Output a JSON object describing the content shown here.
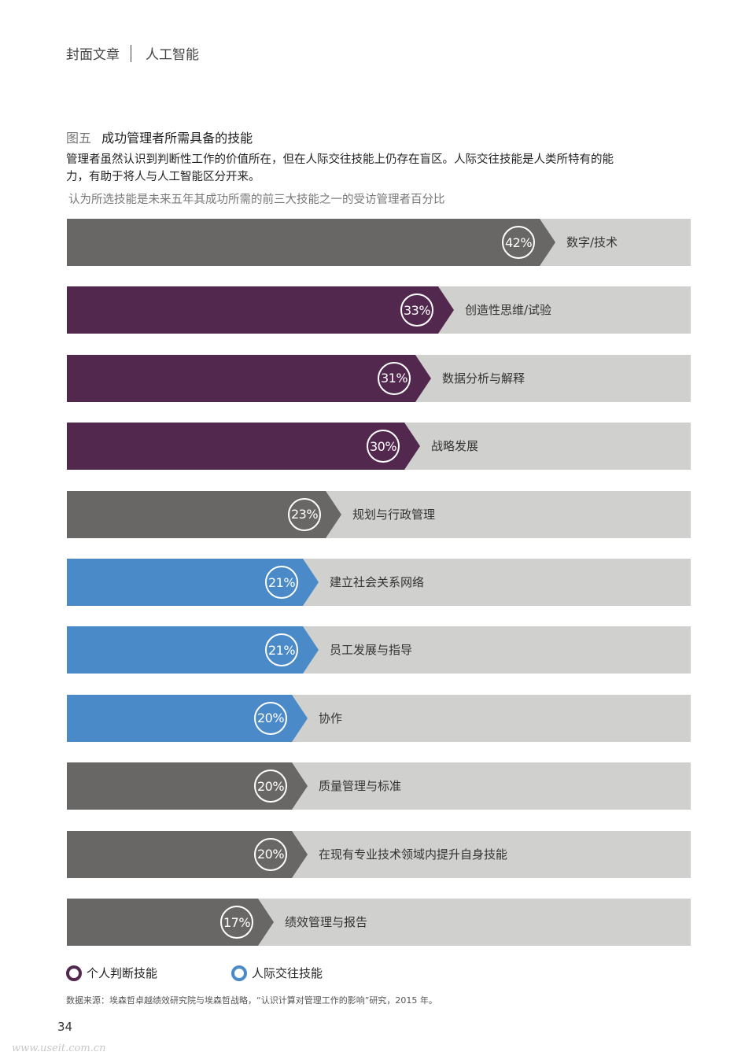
{
  "header": {
    "section": "封面文章",
    "topic": "人工智能"
  },
  "figure": {
    "number": "图五",
    "title": "成功管理者所需具备的技能",
    "description": "管理者虽然认识到判断性工作的价值所在，但在人际交往技能上仍存在盲区。人际交往技能是人类所特有的能力，有助于将人与人工智能区分开来。",
    "subtitle": "认为所选技能是未来五年其成功所需的前三大技能之一的受访管理者百分比"
  },
  "colors": {
    "other": "#686766",
    "personal_judgment": "#53284f",
    "interpersonal": "#4a8ac9",
    "track": "#d0d0cf"
  },
  "chart_data": {
    "type": "bar",
    "orientation": "horizontal",
    "title": "成功管理者所需具备的技能",
    "subtitle": "认为所选技能是未来五年其成功所需的前三大技能之一的受访管理者百分比",
    "unit": "%",
    "categories": [
      "数字/技术",
      "创造性思维/试验",
      "数据分析与解释",
      "战略发展",
      "规划与行政管理",
      "建立社会关系网络",
      "员工发展与指导",
      "协作",
      "质量管理与标准",
      "在现有专业技术领域内提升自身技能",
      "绩效管理与报告"
    ],
    "values": [
      42,
      33,
      31,
      30,
      23,
      21,
      21,
      20,
      20,
      20,
      17
    ],
    "groups": [
      "other",
      "personal_judgment",
      "personal_judgment",
      "personal_judgment",
      "other",
      "interpersonal",
      "interpersonal",
      "interpersonal",
      "other",
      "other",
      "other"
    ],
    "legend": [
      {
        "key": "personal_judgment",
        "label": "个人判断技能"
      },
      {
        "key": "interpersonal",
        "label": "人际交往技能"
      }
    ],
    "xlim": [
      0,
      100
    ],
    "grid": false
  },
  "bars": [
    {
      "label": "数字/技术",
      "pct": "42%",
      "value": 42,
      "group": "other"
    },
    {
      "label": "创造性思维/试验",
      "pct": "33%",
      "value": 33,
      "group": "personal_judgment"
    },
    {
      "label": "数据分析与解释",
      "pct": "31%",
      "value": 31,
      "group": "personal_judgment"
    },
    {
      "label": "战略发展",
      "pct": "30%",
      "value": 30,
      "group": "personal_judgment"
    },
    {
      "label": "规划与行政管理",
      "pct": "23%",
      "value": 23,
      "group": "other"
    },
    {
      "label": "建立社会关系网络",
      "pct": "21%",
      "value": 21,
      "group": "interpersonal"
    },
    {
      "label": "员工发展与指导",
      "pct": "21%",
      "value": 21,
      "group": "interpersonal"
    },
    {
      "label": "协作",
      "pct": "20%",
      "value": 20,
      "group": "interpersonal"
    },
    {
      "label": "质量管理与标准",
      "pct": "20%",
      "value": 20,
      "group": "other"
    },
    {
      "label": "在现有专业技术领域内提升自身技能",
      "pct": "20%",
      "value": 20,
      "group": "other"
    },
    {
      "label": "绩效管理与报告",
      "pct": "17%",
      "value": 17,
      "group": "other"
    }
  ],
  "legend": {
    "personal_judgment": "个人判断技能",
    "interpersonal": "人际交往技能"
  },
  "source": "数据来源：埃森哲卓越绩效研究院与埃森哲战略，“认识计算对管理工作的影响”研究，2015 年。",
  "page_number": "34",
  "watermark": "www.useit.com.cn"
}
